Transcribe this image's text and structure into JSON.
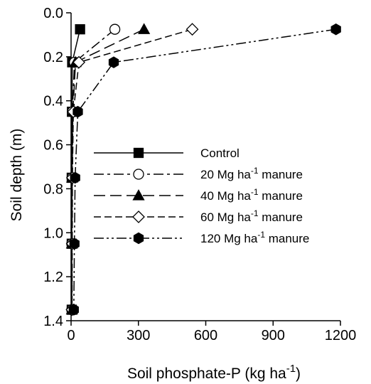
{
  "chart_data": {
    "type": "line",
    "title": "",
    "xlabel": "Soil phosphate-P (kg ha",
    "xlabel_sup": "-1",
    "xlabel_close": ")",
    "ylabel": "Soil depth (m)",
    "xlim": [
      0,
      1200
    ],
    "ylim": [
      0.0,
      1.4
    ],
    "y_inverted": true,
    "x_axis_position": "bottom",
    "x_ticks": [
      0,
      300,
      600,
      900,
      1200
    ],
    "y_ticks": [
      0.0,
      0.2,
      0.4,
      0.6,
      0.8,
      1.0,
      1.2,
      1.4
    ],
    "x_tick_labels": [
      "0",
      "300",
      "600",
      "900",
      "1200"
    ],
    "y_tick_labels": [
      "0.0",
      "0.2",
      "0.4",
      "0.6",
      "0.8",
      "1.0",
      "1.2",
      "1.4"
    ],
    "grid": false,
    "legend_position": "middle-right",
    "depths": [
      0.075,
      0.225,
      0.45,
      0.75,
      1.05,
      1.35
    ],
    "series": [
      {
        "label_pre": "Control",
        "label_sup": "",
        "label_post": "",
        "marker": "square",
        "filled": true,
        "dash": "solid",
        "values": [
          40,
          5,
          4,
          3,
          3,
          3
        ]
      },
      {
        "label_pre": "20 Mg ha",
        "label_sup": "-1",
        "label_post": " manure",
        "marker": "circle",
        "filled": false,
        "dash": "dashdot",
        "values": [
          195,
          15,
          6,
          4,
          3,
          3
        ]
      },
      {
        "label_pre": "40 Mg ha",
        "label_sup": "-1",
        "label_post": " manure",
        "marker": "triangle",
        "filled": true,
        "dash": "longdash",
        "values": [
          325,
          20,
          8,
          5,
          4,
          4
        ]
      },
      {
        "label_pre": "60 Mg ha",
        "label_sup": "-1",
        "label_post": " manure",
        "marker": "diamond",
        "filled": false,
        "dash": "dash",
        "values": [
          540,
          35,
          10,
          6,
          5,
          4
        ]
      },
      {
        "label_pre": "120 Mg ha",
        "label_sup": "-1",
        "label_post": " manure",
        "marker": "hexagon",
        "filled": true,
        "dash": "dashdotdot",
        "values": [
          1180,
          190,
          30,
          18,
          15,
          12
        ]
      }
    ]
  }
}
